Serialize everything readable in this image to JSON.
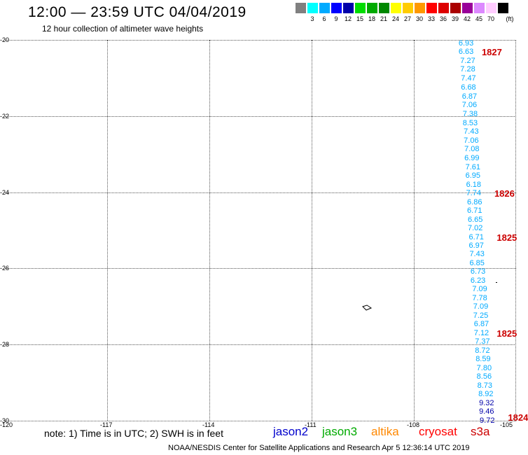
{
  "header": {
    "title": "12:00 — 23:59 UTC 04/04/2019",
    "subtitle": "12 hour collection of altimeter wave heights"
  },
  "scale": {
    "unit": "(ft)",
    "swatches": [
      {
        "color": "#808080",
        "label": ""
      },
      {
        "color": "#00ffff",
        "label": "3"
      },
      {
        "color": "#00aaff",
        "label": "6"
      },
      {
        "color": "#0000ff",
        "label": "9"
      },
      {
        "color": "#0000aa",
        "label": "12"
      },
      {
        "color": "#00dd00",
        "label": "15"
      },
      {
        "color": "#00aa00",
        "label": "18"
      },
      {
        "color": "#008800",
        "label": "21"
      },
      {
        "color": "#ffff00",
        "label": "24"
      },
      {
        "color": "#ffcc00",
        "label": "27"
      },
      {
        "color": "#ff9900",
        "label": "30"
      },
      {
        "color": "#ff0000",
        "label": "33"
      },
      {
        "color": "#dd0000",
        "label": "36"
      },
      {
        "color": "#aa0000",
        "label": "39"
      },
      {
        "color": "#990099",
        "label": "42"
      },
      {
        "color": "#dd88ff",
        "label": "45"
      },
      {
        "color": "#ffccff",
        "label": "70"
      },
      {
        "color": "#000000",
        "label": ""
      }
    ]
  },
  "map": {
    "latitudes": [
      "-20",
      "-22",
      "-24",
      "-26",
      "-28",
      "-30"
    ],
    "longitudes": [
      "-120",
      "-117",
      "-114",
      "-111",
      "-108",
      "-105"
    ],
    "swh_color": "#00aaff",
    "swh_color_high": "#0000aa",
    "measurements": [
      {
        "lon": -106.4,
        "lat": -20.1,
        "v": "6.93"
      },
      {
        "lon": -106.4,
        "lat": -20.32,
        "v": "6.63"
      },
      {
        "lon": -106.35,
        "lat": -20.55,
        "v": "7.27"
      },
      {
        "lon": -106.35,
        "lat": -20.78,
        "v": "7.28"
      },
      {
        "lon": -106.33,
        "lat": -21.02,
        "v": "7.47"
      },
      {
        "lon": -106.33,
        "lat": -21.25,
        "v": "6.68"
      },
      {
        "lon": -106.3,
        "lat": -21.48,
        "v": "6.87"
      },
      {
        "lon": -106.3,
        "lat": -21.71,
        "v": "7.06"
      },
      {
        "lon": -106.28,
        "lat": -21.95,
        "v": "7.38"
      },
      {
        "lon": -106.28,
        "lat": -22.18,
        "v": "8.53"
      },
      {
        "lon": -106.25,
        "lat": -22.41,
        "v": "7.43"
      },
      {
        "lon": -106.25,
        "lat": -22.64,
        "v": "7.06"
      },
      {
        "lon": -106.23,
        "lat": -22.87,
        "v": "7.08"
      },
      {
        "lon": -106.23,
        "lat": -23.1,
        "v": "6.99"
      },
      {
        "lon": -106.2,
        "lat": -23.34,
        "v": "7.61"
      },
      {
        "lon": -106.2,
        "lat": -23.57,
        "v": "6.95"
      },
      {
        "lon": -106.18,
        "lat": -23.8,
        "v": "6.18"
      },
      {
        "lon": -106.18,
        "lat": -24.03,
        "v": "7.74"
      },
      {
        "lon": -106.15,
        "lat": -24.26,
        "v": "6.86"
      },
      {
        "lon": -106.15,
        "lat": -24.49,
        "v": "6.71"
      },
      {
        "lon": -106.13,
        "lat": -24.72,
        "v": "6.65"
      },
      {
        "lon": -106.13,
        "lat": -24.95,
        "v": "7.02"
      },
      {
        "lon": -106.1,
        "lat": -25.18,
        "v": "6.71"
      },
      {
        "lon": -106.1,
        "lat": -25.4,
        "v": "6.97"
      },
      {
        "lon": -106.08,
        "lat": -25.63,
        "v": "7.43"
      },
      {
        "lon": -106.08,
        "lat": -25.86,
        "v": "6.85"
      },
      {
        "lon": -106.05,
        "lat": -26.09,
        "v": "6.73"
      },
      {
        "lon": -106.05,
        "lat": -26.32,
        "v": "6.23"
      },
      {
        "lon": -106.0,
        "lat": -26.55,
        "v": "7.09"
      },
      {
        "lon": -106.0,
        "lat": -26.78,
        "v": "7.78"
      },
      {
        "lon": -105.97,
        "lat": -27.01,
        "v": "7.09"
      },
      {
        "lon": -105.97,
        "lat": -27.24,
        "v": "7.25"
      },
      {
        "lon": -105.95,
        "lat": -27.47,
        "v": "6.87"
      },
      {
        "lon": -105.95,
        "lat": -27.7,
        "v": "7.12"
      },
      {
        "lon": -105.92,
        "lat": -27.93,
        "v": "7.37"
      },
      {
        "lon": -105.92,
        "lat": -28.16,
        "v": "8.72"
      },
      {
        "lon": -105.9,
        "lat": -28.39,
        "v": "8.59"
      },
      {
        "lon": -105.87,
        "lat": -28.62,
        "v": "7.80"
      },
      {
        "lon": -105.87,
        "lat": -28.85,
        "v": "8.56"
      },
      {
        "lon": -105.85,
        "lat": -29.08,
        "v": "8.73"
      },
      {
        "lon": -105.82,
        "lat": -29.31,
        "v": "8.92"
      },
      {
        "lon": -105.8,
        "lat": -29.54,
        "v": "9.32",
        "high": true
      },
      {
        "lon": -105.8,
        "lat": -29.77,
        "v": "9.46",
        "high": true
      },
      {
        "lon": -105.78,
        "lat": -30.0,
        "v": "9.72",
        "high": true
      }
    ],
    "pass_times": [
      {
        "lon": -105.72,
        "lat": -20.32,
        "t": "1827"
      },
      {
        "lon": -105.35,
        "lat": -24.03,
        "t": "1826"
      },
      {
        "lon": -105.28,
        "lat": -25.18,
        "t": "1825"
      },
      {
        "lon": -105.28,
        "lat": -27.7,
        "t": "1825"
      },
      {
        "lon": -104.95,
        "lat": -29.9,
        "t": "1824"
      }
    ]
  },
  "footer": {
    "note": "note: 1) Time is in UTC; 2) SWH is in feet",
    "satellites": [
      {
        "name": "jason2",
        "color": "#0000cc"
      },
      {
        "name": "jason3",
        "color": "#00aa00"
      },
      {
        "name": "altika",
        "color": "#ff8800"
      },
      {
        "name": "cryosat",
        "color": "#ff0000"
      },
      {
        "name": "s3a",
        "color": "#cc0000"
      }
    ],
    "credit": "NOAA/NESDIS Center for Satellite Applications and Research    Apr  5 12:36:14 UTC 2019"
  }
}
